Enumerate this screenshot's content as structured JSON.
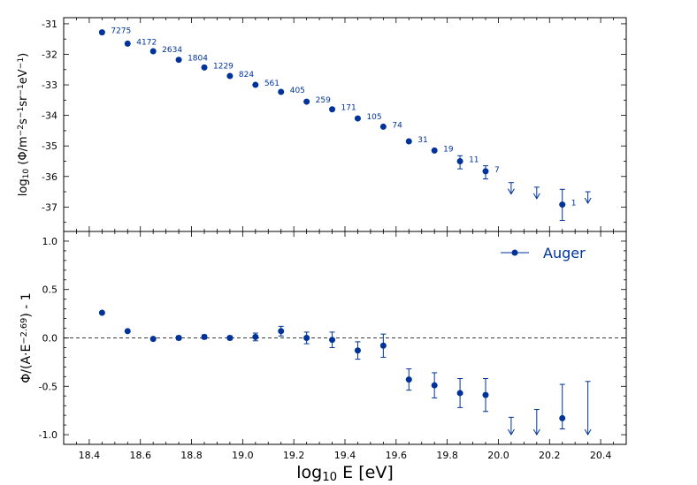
{
  "style": {
    "marker_color": "#003399",
    "ref_line_color": "#000000",
    "axis_color": "#000000"
  },
  "chart_data": [
    {
      "panel": "top",
      "type": "scatter",
      "title": "",
      "ylabel_parts": [
        "log",
        "10",
        " (Φ/m",
        "−2",
        "s",
        "−1",
        "sr",
        "−1",
        "eV",
        "−1",
        ")"
      ],
      "xlim": [
        18.3,
        20.5
      ],
      "ylim": [
        -37.8,
        -30.8
      ],
      "yticks": [
        -31,
        -32,
        -33,
        -34,
        -35,
        -36,
        -37
      ],
      "ytick_labels": [
        "-31",
        "-32",
        "-33",
        "-34",
        "-35",
        "-36",
        "-37"
      ],
      "grid": false,
      "points": [
        {
          "x": 18.45,
          "y": -31.28,
          "label": "7275"
        },
        {
          "x": 18.55,
          "y": -31.65,
          "label": "4172"
        },
        {
          "x": 18.65,
          "y": -31.9,
          "label": "2634"
        },
        {
          "x": 18.75,
          "y": -32.18,
          "label": "1804"
        },
        {
          "x": 18.85,
          "y": -32.43,
          "label": "1229"
        },
        {
          "x": 18.95,
          "y": -32.71,
          "label": "824"
        },
        {
          "x": 19.05,
          "y": -33.0,
          "label": "561"
        },
        {
          "x": 19.15,
          "y": -33.23,
          "label": "405"
        },
        {
          "x": 19.25,
          "y": -33.55,
          "label": "259"
        },
        {
          "x": 19.35,
          "y": -33.8,
          "label": "171"
        },
        {
          "x": 19.45,
          "y": -34.1,
          "label": "105"
        },
        {
          "x": 19.55,
          "y": -34.37,
          "label": "74"
        },
        {
          "x": 19.65,
          "y": -34.85,
          "label": "31"
        },
        {
          "x": 19.75,
          "y": -35.15,
          "label": "19"
        },
        {
          "x": 19.85,
          "y": -35.5,
          "label": "11",
          "yerr_low": 0.25,
          "yerr_high": 0.18
        },
        {
          "x": 19.95,
          "y": -35.83,
          "label": "7",
          "yerr_low": 0.25,
          "yerr_high": 0.18
        },
        {
          "x": 20.25,
          "y": -36.92,
          "label": "1",
          "yerr_low": 0.52,
          "yerr_high": 0.5
        }
      ],
      "upper_limits": [
        {
          "x": 20.05,
          "y": -36.2
        },
        {
          "x": 20.15,
          "y": -36.35
        },
        {
          "x": 20.35,
          "y": -36.5
        }
      ]
    },
    {
      "panel": "bottom",
      "type": "scatter",
      "ylabel_parts": [
        "Φ/(A·E",
        "−2.69",
        ") - 1"
      ],
      "xlabel_parts": [
        "log",
        "10",
        " E [eV]"
      ],
      "xlim": [
        18.3,
        20.5
      ],
      "ylim": [
        -1.1,
        1.1
      ],
      "xticks": [
        18.4,
        18.6,
        18.8,
        19.0,
        19.2,
        19.4,
        19.6,
        19.8,
        20.0,
        20.2,
        20.4
      ],
      "xtick_labels": [
        "18.4",
        "18.6",
        "18.8",
        "19.0",
        "19.2",
        "19.4",
        "19.6",
        "19.8",
        "20.0",
        "20.2",
        "20.4"
      ],
      "yticks": [
        1.0,
        0.5,
        0.0,
        -0.5,
        -1.0
      ],
      "ytick_labels": [
        "1.0",
        "0.5",
        "0.0",
        "-0.5",
        "-1.0"
      ],
      "reference_line": 0.0,
      "legend": {
        "entries": [
          "Auger"
        ],
        "position": "top-right"
      },
      "series": [
        {
          "name": "Auger",
          "points": [
            {
              "x": 18.45,
              "y": 0.26,
              "yerr": 0.01
            },
            {
              "x": 18.55,
              "y": 0.07,
              "yerr": 0.01
            },
            {
              "x": 18.65,
              "y": -0.01,
              "yerr": 0.01
            },
            {
              "x": 18.75,
              "y": 0.0,
              "yerr": 0.02
            },
            {
              "x": 18.85,
              "y": 0.01,
              "yerr": 0.02
            },
            {
              "x": 18.95,
              "y": 0.0,
              "yerr": 0.02
            },
            {
              "x": 19.05,
              "y": 0.01,
              "yerr": 0.04
            },
            {
              "x": 19.15,
              "y": 0.07,
              "yerr": 0.05
            },
            {
              "x": 19.25,
              "y": 0.0,
              "yerr": 0.06
            },
            {
              "x": 19.35,
              "y": -0.02,
              "yerr": 0.08
            },
            {
              "x": 19.45,
              "y": -0.13,
              "yerr": 0.09
            },
            {
              "x": 19.55,
              "y": -0.08,
              "yerr": 0.12
            },
            {
              "x": 19.65,
              "y": -0.43,
              "yerr": 0.11
            },
            {
              "x": 19.75,
              "y": -0.49,
              "yerr": 0.13
            },
            {
              "x": 19.85,
              "y": -0.57,
              "yerr": 0.15
            },
            {
              "x": 19.95,
              "y": -0.59,
              "yerr": 0.17
            },
            {
              "x": 20.25,
              "y": -0.83,
              "yerr_low": 0.11,
              "yerr_high": 0.35
            }
          ]
        }
      ],
      "upper_limits": [
        {
          "x": 20.05,
          "y": -0.82
        },
        {
          "x": 20.15,
          "y": -0.74
        },
        {
          "x": 20.35,
          "y": -0.45
        }
      ]
    }
  ]
}
